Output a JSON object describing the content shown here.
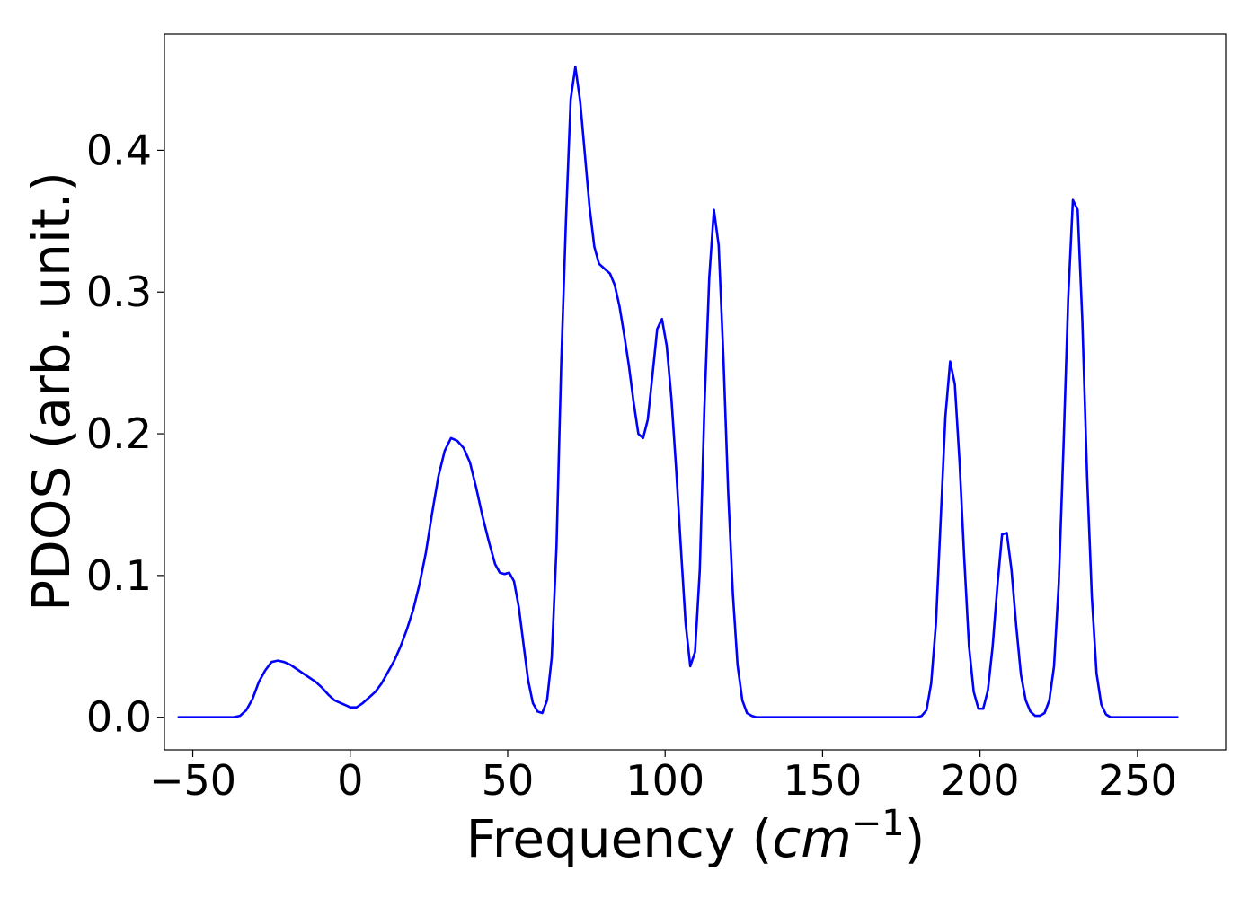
{
  "chart_data": {
    "type": "line",
    "title": "",
    "xlabel": "Frequency (",
    "xlabel_math": "cm",
    "xlabel_exponent": "−1",
    "xlabel_close": ")",
    "ylabel": "PDOS (arb. unit.)",
    "xlim": [
      -59,
      278
    ],
    "ylim": [
      -0.023,
      0.482
    ],
    "xticks": [
      -50,
      0,
      50,
      100,
      150,
      200,
      250
    ],
    "xtick_labels": [
      "−50",
      "0",
      "50",
      "100",
      "150",
      "200",
      "250"
    ],
    "yticks": [
      0.0,
      0.1,
      0.2,
      0.3,
      0.4
    ],
    "ytick_labels": [
      "0.0",
      "0.1",
      "0.2",
      "0.3",
      "0.4"
    ],
    "grid": false,
    "legend": false,
    "series": [
      {
        "color": "#0000ff",
        "points": [
          [
            -54.8,
            0.0
          ],
          [
            -40,
            0.0
          ],
          [
            -37,
            0.0
          ],
          [
            -35,
            0.001
          ],
          [
            -33,
            0.005
          ],
          [
            -31,
            0.013
          ],
          [
            -29,
            0.025
          ],
          [
            -27,
            0.033
          ],
          [
            -25,
            0.039
          ],
          [
            -23,
            0.04
          ],
          [
            -21,
            0.039
          ],
          [
            -19,
            0.037
          ],
          [
            -17,
            0.034
          ],
          [
            -15,
            0.031
          ],
          [
            -13,
            0.028
          ],
          [
            -11,
            0.025
          ],
          [
            -9,
            0.021
          ],
          [
            -7,
            0.016
          ],
          [
            -5,
            0.012
          ],
          [
            -3,
            0.01
          ],
          [
            -1,
            0.008
          ],
          [
            0,
            0.007
          ],
          [
            2,
            0.007
          ],
          [
            4,
            0.01
          ],
          [
            6,
            0.014
          ],
          [
            8,
            0.018
          ],
          [
            10,
            0.024
          ],
          [
            12,
            0.032
          ],
          [
            14,
            0.04
          ],
          [
            16,
            0.05
          ],
          [
            18,
            0.062
          ],
          [
            20,
            0.076
          ],
          [
            22,
            0.094
          ],
          [
            24,
            0.116
          ],
          [
            26,
            0.144
          ],
          [
            28,
            0.17
          ],
          [
            30,
            0.188
          ],
          [
            32,
            0.197
          ],
          [
            34,
            0.195
          ],
          [
            36,
            0.19
          ],
          [
            38,
            0.18
          ],
          [
            40,
            0.162
          ],
          [
            42,
            0.142
          ],
          [
            44,
            0.124
          ],
          [
            46,
            0.108
          ],
          [
            47.5,
            0.102
          ],
          [
            49,
            0.101
          ],
          [
            50.5,
            0.102
          ],
          [
            52,
            0.096
          ],
          [
            53.5,
            0.078
          ],
          [
            55,
            0.052
          ],
          [
            56.5,
            0.026
          ],
          [
            58,
            0.01
          ],
          [
            59.5,
            0.004
          ],
          [
            61,
            0.003
          ],
          [
            62.5,
            0.012
          ],
          [
            64,
            0.042
          ],
          [
            65.5,
            0.12
          ],
          [
            67,
            0.25
          ],
          [
            68.5,
            0.35
          ],
          [
            70,
            0.436
          ],
          [
            71.5,
            0.459
          ],
          [
            73,
            0.435
          ],
          [
            74.5,
            0.398
          ],
          [
            76,
            0.36
          ],
          [
            77.5,
            0.332
          ],
          [
            79,
            0.32
          ],
          [
            81,
            0.316
          ],
          [
            82.5,
            0.313
          ],
          [
            84,
            0.305
          ],
          [
            85.5,
            0.29
          ],
          [
            87,
            0.27
          ],
          [
            88.5,
            0.248
          ],
          [
            90,
            0.222
          ],
          [
            91.5,
            0.2
          ],
          [
            93,
            0.197
          ],
          [
            94.5,
            0.21
          ],
          [
            96,
            0.242
          ],
          [
            97.5,
            0.274
          ],
          [
            99,
            0.281
          ],
          [
            100.5,
            0.262
          ],
          [
            102,
            0.225
          ],
          [
            103.5,
            0.175
          ],
          [
            105,
            0.12
          ],
          [
            106.5,
            0.066
          ],
          [
            108,
            0.036
          ],
          [
            109.5,
            0.046
          ],
          [
            111,
            0.104
          ],
          [
            112.5,
            0.22
          ],
          [
            114,
            0.31
          ],
          [
            115.5,
            0.358
          ],
          [
            117,
            0.333
          ],
          [
            118.5,
            0.255
          ],
          [
            120,
            0.16
          ],
          [
            121.5,
            0.087
          ],
          [
            123,
            0.037
          ],
          [
            124.5,
            0.012
          ],
          [
            126,
            0.003
          ],
          [
            127.5,
            0.001
          ],
          [
            129,
            0.0
          ],
          [
            180,
            0.0
          ],
          [
            181.5,
            0.001
          ],
          [
            183,
            0.005
          ],
          [
            184.5,
            0.024
          ],
          [
            186,
            0.066
          ],
          [
            187.5,
            0.138
          ],
          [
            189,
            0.212
          ],
          [
            190.5,
            0.251
          ],
          [
            192,
            0.235
          ],
          [
            193.5,
            0.18
          ],
          [
            195,
            0.112
          ],
          [
            196.5,
            0.05
          ],
          [
            198,
            0.018
          ],
          [
            199.5,
            0.006
          ],
          [
            201,
            0.006
          ],
          [
            202.5,
            0.019
          ],
          [
            204,
            0.05
          ],
          [
            205.5,
            0.092
          ],
          [
            207,
            0.129
          ],
          [
            208.5,
            0.13
          ],
          [
            210,
            0.104
          ],
          [
            211.5,
            0.064
          ],
          [
            213,
            0.03
          ],
          [
            214.5,
            0.012
          ],
          [
            216,
            0.004
          ],
          [
            217.5,
            0.001
          ],
          [
            219,
            0.001
          ],
          [
            220.5,
            0.003
          ],
          [
            222,
            0.012
          ],
          [
            223.5,
            0.036
          ],
          [
            225,
            0.095
          ],
          [
            226.5,
            0.19
          ],
          [
            228,
            0.296
          ],
          [
            229.5,
            0.365
          ],
          [
            231,
            0.358
          ],
          [
            232.5,
            0.28
          ],
          [
            234,
            0.17
          ],
          [
            235.5,
            0.085
          ],
          [
            237,
            0.031
          ],
          [
            238.5,
            0.009
          ],
          [
            240,
            0.002
          ],
          [
            241.5,
            0.0
          ],
          [
            243,
            0.0
          ],
          [
            263,
            0.0
          ]
        ]
      }
    ]
  }
}
